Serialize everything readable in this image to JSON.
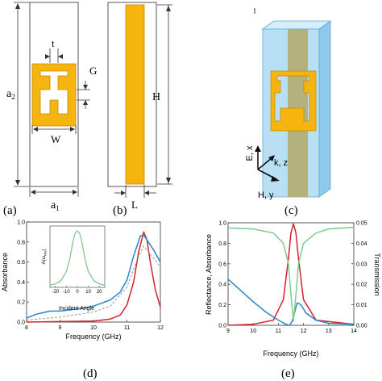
{
  "colors": {
    "gold": "#f6b40f",
    "gold_outline": "#c78700",
    "substrate_blue": "#b9dff4",
    "substrate_edge": "#5fa9d6",
    "red_curve": "#d4222a",
    "blue_curve": "#2a86c8",
    "green_curve": "#7dcb8e",
    "gray_curve": "#9a9a9a"
  },
  "panels": {
    "a": {
      "caption": "(a)",
      "labels": {
        "t": "t",
        "G": "G",
        "a2_main": "a",
        "a2_sub": "2",
        "W": "W",
        "a1_main": "a",
        "a1_sub": "1"
      }
    },
    "b": {
      "caption": "(b)",
      "labels": {
        "H": "H",
        "L": "L"
      }
    },
    "c": {
      "caption": "(c)",
      "axes": {
        "e": "E, x",
        "k": "k, z",
        "h": "H, y"
      }
    }
  },
  "chart_data": [
    {
      "id": "d",
      "type": "line",
      "caption": "(d)",
      "xlabel": "Frequency (GHz)",
      "ylabel": "Absorbance",
      "xlim": [
        8,
        12
      ],
      "ylim": [
        0,
        1.0
      ],
      "xticks": [
        "8",
        "9",
        "10",
        "11",
        "12"
      ],
      "yticks": [
        "0.0",
        "0.2",
        "0.4",
        "0.6",
        "0.8",
        "1.0"
      ],
      "series": [
        {
          "color": "red",
          "x": [
            8,
            10,
            10.5,
            10.8,
            11.0,
            11.2,
            11.35,
            11.5,
            11.6,
            11.7,
            11.85,
            12
          ],
          "y": [
            0.0,
            0.01,
            0.03,
            0.07,
            0.17,
            0.4,
            0.7,
            0.9,
            0.82,
            0.6,
            0.32,
            0.15
          ]
        },
        {
          "color": "blue",
          "x": [
            8,
            8.3,
            8.7,
            9,
            9.5,
            10,
            10.5,
            10.8,
            11.0,
            11.2,
            11.4,
            11.5,
            11.6,
            11.8,
            12
          ],
          "y": [
            0.04,
            0.08,
            0.11,
            0.11,
            0.13,
            0.16,
            0.22,
            0.3,
            0.42,
            0.66,
            0.86,
            0.87,
            0.82,
            0.72,
            0.6
          ]
        },
        {
          "color": "gray",
          "dashed": true,
          "x": [
            8,
            9,
            10,
            10.5,
            11.0,
            11.3,
            11.5,
            11.7,
            12
          ],
          "y": [
            0.02,
            0.05,
            0.1,
            0.16,
            0.35,
            0.62,
            0.76,
            0.68,
            0.55
          ]
        }
      ],
      "inset": {
        "xlabel": "Incident Angle",
        "ylabel_main": "A(ω",
        "ylabel_sub": "res",
        "ylabel_end": ")",
        "xlim": [
          -25,
          25
        ],
        "xticks": [
          "-20",
          "-10",
          "0",
          "10",
          "20"
        ],
        "x": [
          -25,
          -20,
          -15,
          -10,
          -7,
          -4,
          -2,
          0,
          2,
          4,
          7,
          10,
          15,
          20,
          25
        ],
        "y": [
          0.04,
          0.06,
          0.12,
          0.28,
          0.5,
          0.82,
          0.96,
          1.0,
          0.96,
          0.82,
          0.5,
          0.28,
          0.12,
          0.06,
          0.04
        ]
      }
    },
    {
      "id": "e",
      "type": "line",
      "caption": "(e)",
      "xlabel": "Frequency (GHz)",
      "ylabel": "Reflectance, Absorbance",
      "y2label": "Transmission",
      "xlim": [
        9,
        14
      ],
      "ylim": [
        0,
        1.0
      ],
      "y2lim": [
        0,
        0.05
      ],
      "xticks": [
        "9",
        "10",
        "11",
        "12",
        "13",
        "14"
      ],
      "yticks": [
        "0.0",
        "0.2",
        "0.4",
        "0.6",
        "0.8",
        "1.0"
      ],
      "y2ticks": [
        "0.00",
        "0.01",
        "0.02",
        "0.03",
        "0.04",
        "0.05"
      ],
      "series": [
        {
          "color": "red",
          "x": [
            9,
            10,
            10.8,
            11.2,
            11.4,
            11.5,
            11.6,
            11.7,
            11.8,
            12.0,
            12.5,
            14
          ],
          "y": [
            0.0,
            0.01,
            0.05,
            0.25,
            0.65,
            0.9,
            0.99,
            0.9,
            0.65,
            0.25,
            0.05,
            0.01
          ]
        },
        {
          "color": "blue",
          "x": [
            9,
            9.5,
            10,
            10.5,
            11.0,
            11.3,
            11.45,
            11.55,
            11.65,
            11.75,
            11.9,
            12.1,
            12.5,
            13,
            14
          ],
          "y": [
            0.45,
            0.34,
            0.23,
            0.13,
            0.05,
            0.01,
            0.0,
            0.04,
            0.13,
            0.22,
            0.2,
            0.12,
            0.05,
            0.02,
            0.01
          ]
        },
        {
          "color": "green",
          "axis": "y2",
          "x": [
            9,
            10,
            10.8,
            11.2,
            11.4,
            11.5,
            11.6,
            11.7,
            11.8,
            12.0,
            12.5,
            13,
            14
          ],
          "y": [
            0.0475,
            0.047,
            0.045,
            0.04,
            0.03,
            0.015,
            0.002,
            0.015,
            0.03,
            0.04,
            0.045,
            0.047,
            0.0478
          ]
        }
      ]
    }
  ]
}
